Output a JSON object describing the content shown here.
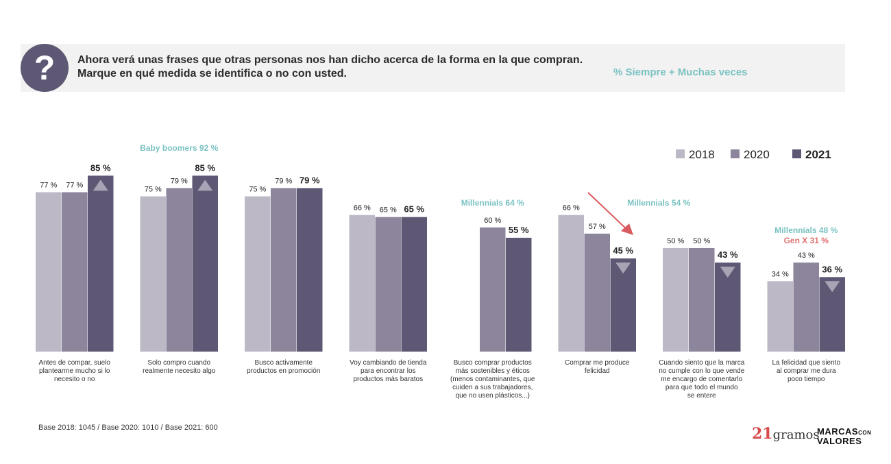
{
  "header": {
    "icon_label": "?",
    "question_line1": "Ahora verá unas frases que otras personas nos han dicho acerca de la forma en la que compran.",
    "question_line2": "Marque en qué medida se identifica o no con usted.",
    "metric_label": "% Siempre + Muchas veces"
  },
  "chart_data": {
    "type": "bar",
    "ylim": [
      0,
      100
    ],
    "colors": {
      "2018": "#bdb8c6",
      "2020": "#8c859c",
      "2021": "#5e5874",
      "accent": "#7bc2c2",
      "alert": "#e07070",
      "arrow": "#d95a5f"
    },
    "series": [
      {
        "name": "2018",
        "values": [
          77,
          75,
          75,
          66,
          null,
          66,
          50,
          34
        ]
      },
      {
        "name": "2020",
        "values": [
          77,
          79,
          79,
          65,
          60,
          57,
          50,
          43
        ]
      },
      {
        "name": "2021",
        "values": [
          85,
          85,
          79,
          65,
          55,
          45,
          43,
          36
        ]
      }
    ],
    "categories": [
      [
        "Antes de compar, suelo",
        "plantearme mucho si lo",
        "necesito o no"
      ],
      [
        "Solo compro cuando",
        "realmente necesito algo"
      ],
      [
        "Busco activamente",
        "productos en promoción"
      ],
      [
        "Voy cambiando de tienda",
        "para encontrar los",
        "productos más baratos"
      ],
      [
        "Busco comprar productos",
        "más sostenibles y éticos",
        "(menos contaminantes, que",
        "cuiden a sus trabajadores,",
        "que no usen plásticos...)"
      ],
      [
        "Comprar me produce",
        "felicidad"
      ],
      [
        "Cuando siento que la marca",
        "no cumple con lo que vende",
        "me encargo de comentarlo",
        "para que todo el mundo",
        "se entere"
      ],
      [
        "La felicidad que siento",
        "al comprar me dura",
        "poco tiempo"
      ]
    ],
    "data_labels": [
      [
        "77 %",
        "77 %",
        "85 %"
      ],
      [
        "75 %",
        "79 %",
        "85 %"
      ],
      [
        "75 %",
        "79 %",
        "79 %"
      ],
      [
        "66 %",
        "65 %",
        "65 %"
      ],
      [
        "",
        "60 %",
        "55 %"
      ],
      [
        "66 %",
        "57 %",
        "45 %"
      ],
      [
        "50 %",
        "50 %",
        "43 %"
      ],
      [
        "34 %",
        "43 %",
        "36 %"
      ]
    ],
    "trend_markers": [
      "up",
      "up",
      "",
      "",
      "",
      "down",
      "down",
      "down"
    ],
    "annotations": [
      {
        "group": 1,
        "lines": [
          "Baby boomers 92 %"
        ]
      },
      {
        "group": 4,
        "lines": [
          "Millennials 64 %"
        ]
      },
      {
        "group": 5,
        "lines": [
          "Millennials 54 %"
        ]
      },
      {
        "group": 7,
        "lines": [
          "Millennials 48 %",
          "Gen X 31 %"
        ]
      }
    ],
    "legend": [
      "2018",
      "2020",
      "2021"
    ],
    "legend_position": "top-right"
  },
  "footer": {
    "base": "Base 2018: 1045 / Base 2020: 1010 / Base 2021: 600",
    "logo_21": "21",
    "logo_gramos": "gramos",
    "logo_marcas": "MARCAS",
    "logo_con": "CON",
    "logo_valores": "VALORES"
  }
}
